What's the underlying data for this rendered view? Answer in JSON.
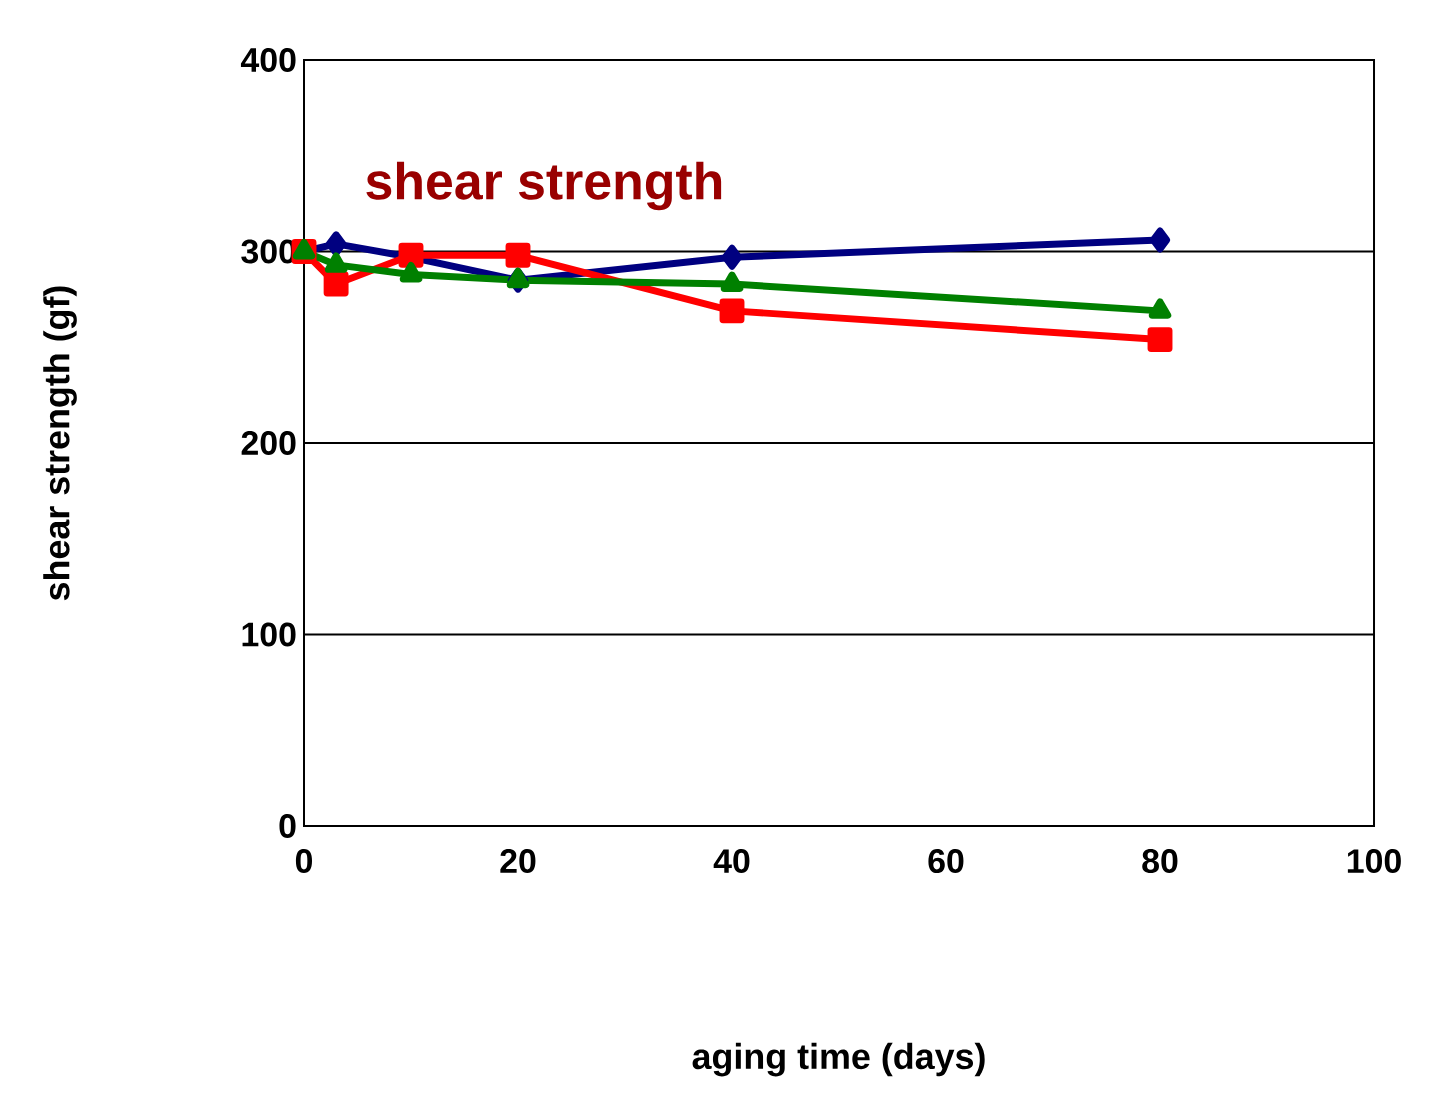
{
  "chart_data": {
    "type": "line",
    "title": "shear strength",
    "xlabel": "aging time (days)",
    "ylabel": "shear strength (gf)",
    "x": [
      0,
      3,
      10,
      20,
      40,
      80
    ],
    "series": [
      {
        "color": "#000080",
        "marker": "diamond",
        "values": [
          300,
          304,
          297,
          285,
          297,
          306
        ]
      },
      {
        "color": "#ff0000",
        "marker": "square",
        "values": [
          300,
          283,
          298,
          298,
          269,
          254
        ]
      },
      {
        "color": "#008000",
        "marker": "triangle",
        "values": [
          300,
          293,
          288,
          285,
          283,
          269
        ]
      }
    ],
    "xlim": [
      0,
      100
    ],
    "xticks": [
      0,
      20,
      40,
      60,
      80,
      100
    ],
    "ylim": [
      0,
      400
    ],
    "yticks": [
      0,
      100,
      200,
      300,
      400
    ],
    "grid": "y"
  }
}
